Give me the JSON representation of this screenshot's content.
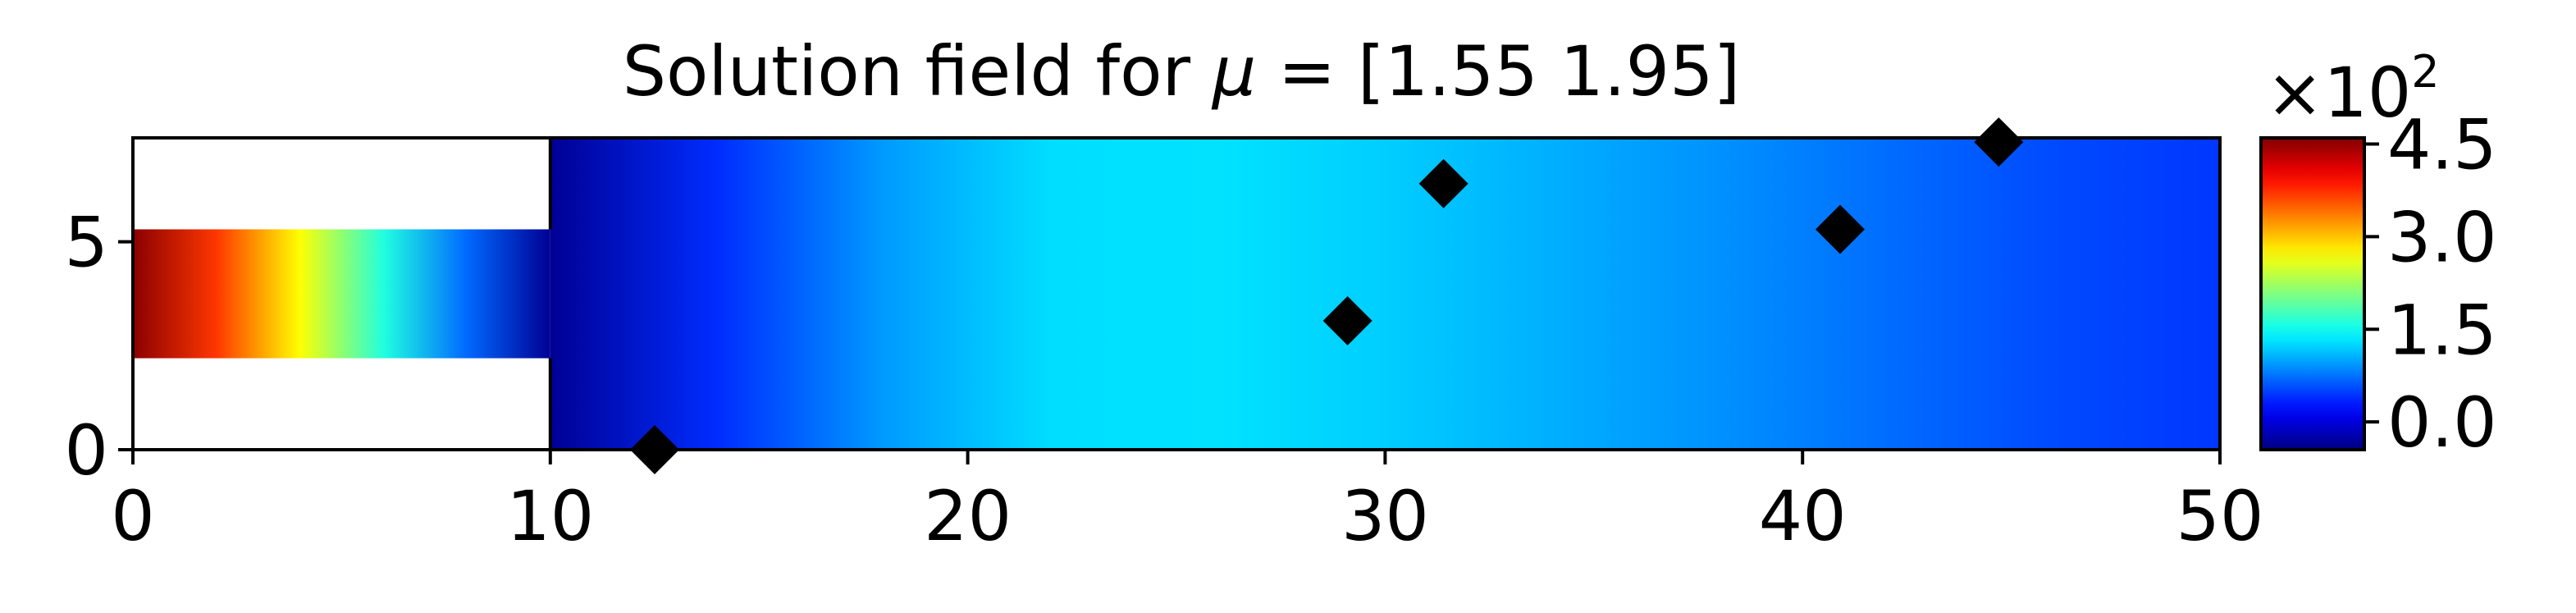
{
  "chart_data": {
    "type": "heatmap",
    "title_prefix": "Solution field for ",
    "title_mu": "μ",
    "title_suffix": " = [1.55 1.95]",
    "xlim": [
      0,
      50
    ],
    "ylim": [
      0,
      7.5
    ],
    "xticks": [
      0,
      10,
      20,
      30,
      40,
      50
    ],
    "xtick_labels": [
      "0",
      "10",
      "20",
      "30",
      "40",
      "50"
    ],
    "yticks": [
      0,
      5
    ],
    "ytick_labels": [
      "0",
      "5"
    ],
    "inlet_channel": {
      "x": [
        0,
        10
      ],
      "y": [
        2.2,
        5.3
      ]
    },
    "colormap": "jet",
    "colorbar": {
      "multiplier_base": "×10",
      "multiplier_exp": "2",
      "range": [
        -0.45,
        4.6
      ],
      "ticks": [
        0.0,
        1.5,
        3.0,
        4.5
      ],
      "tick_labels": [
        "0.0",
        "1.5",
        "3.0",
        "4.5"
      ]
    },
    "field_profile_x": [
      0,
      2,
      4,
      6,
      8,
      10,
      14,
      18,
      22,
      26,
      30,
      34,
      38,
      42,
      46,
      50
    ],
    "field_profile_value": [
      4.55,
      3.7,
      2.7,
      1.6,
      0.7,
      -0.35,
      0.4,
      0.95,
      1.28,
      1.3,
      1.2,
      1.05,
      0.9,
      0.72,
      0.55,
      0.45
    ],
    "sensor_points": [
      {
        "x": 12.5,
        "y": 0.0
      },
      {
        "x": 29.1,
        "y": 3.1
      },
      {
        "x": 31.4,
        "y": 6.4
      },
      {
        "x": 40.9,
        "y": 5.3
      },
      {
        "x": 44.7,
        "y": 7.4
      }
    ],
    "sensor_color": "#000000"
  }
}
